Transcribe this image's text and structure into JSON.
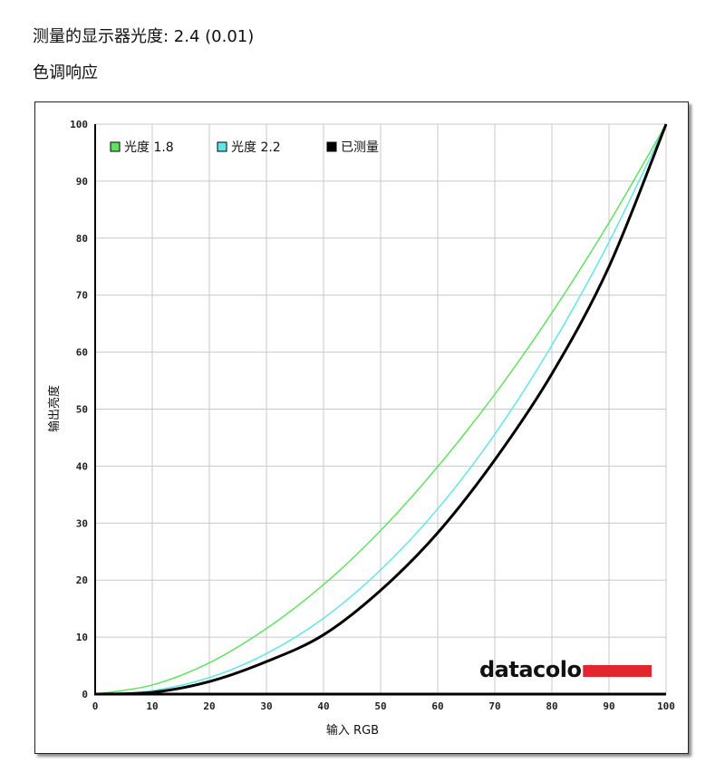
{
  "header": {
    "gamma_text": "测量的显示器光度:  2.4 (0.01)",
    "section_title": "色调响应"
  },
  "brand": {
    "text": "datacolor",
    "bar_color": "#e3262e"
  },
  "chart_data": {
    "type": "line",
    "title": "",
    "xlabel": "输入 RGB",
    "ylabel": "输出亮度",
    "xlim": [
      0,
      100
    ],
    "ylim": [
      0,
      100
    ],
    "x_ticks": [
      0,
      10,
      20,
      30,
      40,
      50,
      60,
      70,
      80,
      90,
      100
    ],
    "y_ticks": [
      0,
      10,
      20,
      30,
      40,
      50,
      60,
      70,
      80,
      90,
      100
    ],
    "grid": true,
    "legend_position": "top-left",
    "x": [
      0,
      10,
      20,
      30,
      40,
      50,
      60,
      70,
      80,
      90,
      100
    ],
    "series": [
      {
        "name": "光度 1.8",
        "color": "#5fe35f",
        "values": [
          0,
          1.6,
          5.5,
          11.5,
          19.2,
          28.7,
          39.9,
          52.6,
          66.9,
          82.7,
          100
        ]
      },
      {
        "name": "光度 2.2",
        "color": "#5fe6e6",
        "values": [
          0,
          0.6,
          2.9,
          7.1,
          13.3,
          21.8,
          32.5,
          45.6,
          61.2,
          79.3,
          100
        ]
      },
      {
        "name": "已测量",
        "color": "#000000",
        "values": [
          0,
          0.3,
          2.2,
          5.7,
          10.4,
          18.2,
          28.3,
          41.1,
          56.2,
          75.0,
          100
        ]
      }
    ]
  }
}
